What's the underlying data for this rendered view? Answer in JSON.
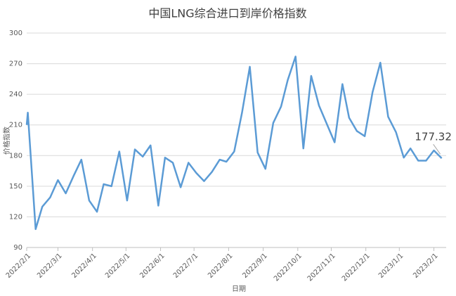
{
  "chart_data": {
    "type": "line",
    "title": "中国LNG综合进口到岸价格指数",
    "x_label": "日期",
    "y_label": "价格指数",
    "x": [
      0,
      1,
      8,
      14,
      21,
      28,
      35,
      42,
      49,
      56,
      63,
      69,
      76,
      83,
      90,
      97,
      104,
      111,
      118,
      124,
      131,
      138,
      145,
      152,
      159,
      166,
      173,
      179,
      186,
      193,
      200,
      207,
      214,
      221,
      228,
      234,
      241,
      248,
      255,
      262,
      269,
      276,
      283,
      289,
      296,
      303,
      310,
      317,
      324,
      331,
      338,
      344,
      351,
      358,
      365,
      372
    ],
    "series": [
      {
        "name": "价格指数",
        "color": "#5b9bd5",
        "values": [
          210,
          222,
          108,
          130,
          139,
          156,
          143,
          160,
          176,
          136,
          125,
          152,
          150,
          184,
          136,
          186,
          179,
          190,
          131,
          178,
          173,
          149,
          173,
          163,
          155,
          164,
          176,
          174,
          184,
          222,
          267,
          183,
          167,
          212,
          228,
          254,
          277,
          187,
          258,
          229,
          211,
          193,
          250,
          217,
          204,
          199,
          242,
          271,
          218,
          203,
          178,
          187,
          175,
          175,
          185,
          177.32
        ]
      }
    ],
    "data_labels": "last",
    "xlim": [
      0,
      376
    ],
    "xticks": [
      {
        "value": 0,
        "label": "2022/2/1"
      },
      {
        "value": 28,
        "label": "2022/3/1"
      },
      {
        "value": 59,
        "label": "2022/4/1"
      },
      {
        "value": 89,
        "label": "2022/5/1"
      },
      {
        "value": 120,
        "label": "2022/6/1"
      },
      {
        "value": 150,
        "label": "2022/7/1"
      },
      {
        "value": 181,
        "label": "2022/8/1"
      },
      {
        "value": 212,
        "label": "2022/9/1"
      },
      {
        "value": 243,
        "label": "2022/10/1"
      },
      {
        "value": 273,
        "label": "2022/11/1"
      },
      {
        "value": 304,
        "label": "2022/12/1"
      },
      {
        "value": 334,
        "label": "2023/1/1"
      },
      {
        "value": 365,
        "label": "2023/2/1"
      }
    ],
    "ylim": [
      90,
      300
    ],
    "yticks": [
      90,
      120,
      150,
      180,
      210,
      240,
      270,
      300
    ],
    "grid": true
  }
}
